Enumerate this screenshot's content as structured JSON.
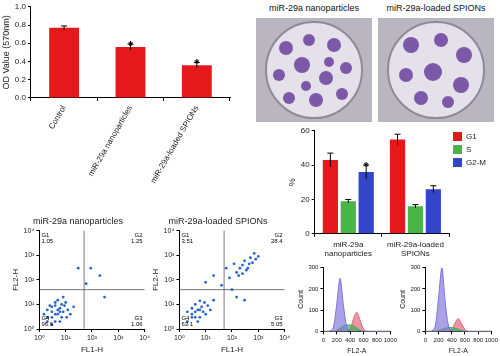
{
  "chart_data": [
    {
      "type": "bar",
      "y_label": "OD Value (570nm)",
      "categories": [
        "Control",
        "miR-29a nanoparticles",
        "miR-29a-loaded SPIONs"
      ],
      "values": [
        0.77,
        0.56,
        0.36
      ],
      "errors": [
        0.02,
        0.03,
        0.03
      ],
      "color": "#e5191b",
      "ylim": [
        0,
        1
      ],
      "yticks": [
        {
          "value": 0,
          "label": "0.0"
        },
        {
          "value": 0.2,
          "label": "0.2"
        },
        {
          "value": 0.4,
          "label": "0.4"
        },
        {
          "value": 0.6,
          "label": "0.6"
        },
        {
          "value": 0.8,
          "label": "0.8"
        },
        {
          "value": 1,
          "label": "1.0"
        }
      ],
      "grid": false,
      "annotations": [
        {
          "category": "miR-29a nanoparticles",
          "text": "*"
        },
        {
          "category": "miR-29a-loaded SPIONs",
          "text": "*"
        }
      ]
    },
    {
      "type": "bar",
      "y_label": "%",
      "categories": [
        "miR-29a nanoparticles",
        "miR-29a-loaded SPIONs"
      ],
      "series": [
        {
          "name": "G1",
          "color": "#e5191b",
          "values": [
            43,
            55
          ],
          "errors": [
            4,
            3
          ]
        },
        {
          "name": "S",
          "color": "#49b544",
          "values": [
            19,
            16
          ],
          "errors": [
            1,
            1
          ]
        },
        {
          "name": "G2-M",
          "color": "#3345c8",
          "values": [
            36,
            26
          ],
          "errors": [
            4,
            2
          ]
        }
      ],
      "ylim": [
        0,
        60
      ],
      "yticks": [
        0,
        20,
        40,
        60
      ],
      "grid": false,
      "legend": "top-right",
      "annotations": [
        {
          "category": "miR-29a nanoparticles",
          "series": "G2-M",
          "text": "*"
        }
      ]
    },
    {
      "type": "scatter",
      "title": "miR-29a nanoparticles",
      "x_label": "FL1-H",
      "y_label": "FL2-H",
      "log": true,
      "xlim": [
        1,
        10000
      ],
      "ylim": [
        1,
        10000
      ],
      "xticks": [
        {
          "value": 1,
          "label": "10⁰"
        },
        {
          "value": 10,
          "label": "10¹"
        },
        {
          "value": 100,
          "label": "10²"
        },
        {
          "value": 1000,
          "label": "10³"
        },
        {
          "value": 10000,
          "label": "10⁴"
        }
      ],
      "yticks": [
        {
          "value": 1,
          "label": "10⁰"
        },
        {
          "value": 10,
          "label": "10¹"
        },
        {
          "value": 100,
          "label": "10²"
        },
        {
          "value": 1000,
          "label": "10³"
        },
        {
          "value": 10000,
          "label": "10⁴"
        }
      ],
      "grid": false,
      "color": "#2a62d4",
      "gates": {
        "x": 50,
        "y": 40
      },
      "quadrants": [
        {
          "label": "G1",
          "value": 1.05
        },
        {
          "label": "G2",
          "value": 1.25
        },
        {
          "label": "G3",
          "value": 1.06
        },
        {
          "label": "G4",
          "value": 96.6
        }
      ],
      "points": [
        [
          2,
          3
        ],
        [
          3,
          5
        ],
        [
          4,
          2
        ],
        [
          5,
          4
        ],
        [
          6,
          7
        ],
        [
          3,
          3
        ],
        [
          2,
          2
        ],
        [
          8,
          5
        ],
        [
          4,
          9
        ],
        [
          7,
          3
        ],
        [
          5,
          6
        ],
        [
          3,
          8
        ],
        [
          9,
          9
        ],
        [
          6,
          2
        ],
        [
          2,
          6
        ],
        [
          12,
          6
        ],
        [
          4,
          4
        ],
        [
          10,
          12
        ],
        [
          5,
          15
        ],
        [
          15,
          4
        ],
        [
          3,
          1.5
        ],
        [
          1.5,
          4
        ],
        [
          7,
          10
        ],
        [
          20,
          8
        ],
        [
          8,
          20
        ],
        [
          6,
          5
        ],
        [
          11,
          3
        ],
        [
          4,
          12
        ],
        [
          2.5,
          9
        ],
        [
          60,
          70
        ],
        [
          200,
          150
        ],
        [
          90,
          300
        ],
        [
          30,
          300
        ],
        [
          300,
          20
        ]
      ]
    },
    {
      "type": "scatter",
      "title": "miR-29a-loaded SPIONs",
      "x_label": "FL1-H",
      "y_label": "FL2-H",
      "log": true,
      "xlim": [
        1,
        10000
      ],
      "ylim": [
        1,
        10000
      ],
      "xticks": [
        {
          "value": 1,
          "label": "10⁰"
        },
        {
          "value": 10,
          "label": "10¹"
        },
        {
          "value": 100,
          "label": "10²"
        },
        {
          "value": 1000,
          "label": "10³"
        },
        {
          "value": 10000,
          "label": "10⁴"
        }
      ],
      "yticks": [
        {
          "value": 1,
          "label": "10⁰"
        },
        {
          "value": 10,
          "label": "10¹"
        },
        {
          "value": 100,
          "label": "10²"
        },
        {
          "value": 1000,
          "label": "10³"
        },
        {
          "value": 10000,
          "label": "10⁴"
        }
      ],
      "grid": false,
      "color": "#2a62d4",
      "gates": {
        "x": 50,
        "y": 40
      },
      "quadrants": [
        {
          "label": "G1",
          "value": 3.51
        },
        {
          "label": "G2",
          "value": 28.4
        },
        {
          "label": "G3",
          "value": 5.05
        },
        {
          "label": "G4",
          "value": 63.1
        }
      ],
      "points": [
        [
          3,
          4
        ],
        [
          4,
          3
        ],
        [
          5,
          6
        ],
        [
          2,
          2
        ],
        [
          6,
          3
        ],
        [
          3,
          7
        ],
        [
          8,
          5
        ],
        [
          4,
          10
        ],
        [
          7,
          8
        ],
        [
          10,
          4
        ],
        [
          2,
          5
        ],
        [
          5,
          2
        ],
        [
          12,
          9
        ],
        [
          6,
          14
        ],
        [
          15,
          6
        ],
        [
          9,
          12
        ],
        [
          20,
          15
        ],
        [
          3,
          3
        ],
        [
          4,
          5
        ],
        [
          6,
          6
        ],
        [
          150,
          200
        ],
        [
          250,
          400
        ],
        [
          400,
          300
        ],
        [
          300,
          600
        ],
        [
          600,
          500
        ],
        [
          200,
          300
        ],
        [
          500,
          800
        ],
        [
          800,
          700
        ],
        [
          120,
          450
        ],
        [
          350,
          250
        ],
        [
          700,
          1200
        ],
        [
          450,
          450
        ],
        [
          1000,
          900
        ],
        [
          180,
          150
        ],
        [
          250,
          180
        ],
        [
          80,
          120
        ],
        [
          60,
          300
        ],
        [
          20,
          150
        ],
        [
          10,
          80
        ],
        [
          150,
          20
        ],
        [
          300,
          15
        ],
        [
          100,
          40
        ],
        [
          40,
          60
        ]
      ]
    },
    {
      "type": "area",
      "x_label": "FL2-A",
      "y_label": "Count",
      "x": [
        0,
        50,
        100,
        150,
        200,
        250,
        300,
        350,
        400,
        450,
        500,
        550,
        600,
        650,
        700,
        750,
        800,
        850,
        900,
        950,
        1000
      ],
      "series": [
        {
          "color": "#7f73d9",
          "values": [
            0,
            0,
            2,
            20,
            130,
            250,
            120,
            20,
            2,
            0,
            0,
            0,
            0,
            0,
            0,
            0,
            0,
            0,
            0,
            0,
            0
          ]
        },
        {
          "color": "#34b34a",
          "values": [
            0,
            0,
            0,
            0,
            5,
            15,
            25,
            30,
            30,
            25,
            15,
            5,
            0,
            0,
            0,
            0,
            0,
            0,
            0,
            0,
            0
          ]
        },
        {
          "color": "#e0607a",
          "values": [
            0,
            0,
            0,
            0,
            0,
            0,
            0,
            0,
            10,
            60,
            90,
            50,
            10,
            0,
            0,
            0,
            0,
            0,
            0,
            0,
            0
          ]
        }
      ],
      "xlim": [
        0,
        1000
      ],
      "xticks": [
        0,
        200,
        400,
        600,
        800,
        1000
      ],
      "ylim": [
        0,
        300
      ],
      "yticks": [
        0,
        100,
        200,
        300
      ],
      "grid": false
    },
    {
      "type": "area",
      "x_label": "FL2-A",
      "y_label": "Count",
      "x": [
        0,
        50,
        100,
        150,
        200,
        250,
        300,
        350,
        400,
        450,
        500,
        550,
        600,
        650,
        700,
        750,
        800,
        850,
        900,
        950,
        1000
      ],
      "series": [
        {
          "color": "#7f73d9",
          "values": [
            0,
            0,
            2,
            25,
            160,
            300,
            140,
            25,
            3,
            0,
            0,
            0,
            0,
            0,
            0,
            0,
            0,
            0,
            0,
            0,
            0
          ]
        },
        {
          "color": "#34b34a",
          "values": [
            0,
            0,
            0,
            0,
            4,
            10,
            15,
            18,
            18,
            15,
            10,
            4,
            0,
            0,
            0,
            0,
            0,
            0,
            0,
            0,
            0
          ]
        },
        {
          "color": "#e0607a",
          "values": [
            0,
            0,
            0,
            0,
            0,
            0,
            0,
            0,
            8,
            40,
            60,
            35,
            8,
            0,
            0,
            0,
            0,
            0,
            0,
            0,
            0
          ]
        }
      ],
      "xlim": [
        0,
        1000
      ],
      "xticks": [
        0,
        200,
        400,
        600,
        800,
        1000
      ],
      "ylim": [
        0,
        300
      ],
      "yticks": [
        0,
        100,
        200,
        300
      ],
      "grid": false
    }
  ],
  "photo_panel": {
    "labels": [
      "miR-29a nanoparticles",
      "miR-29a-loaded SPIONs"
    ]
  }
}
